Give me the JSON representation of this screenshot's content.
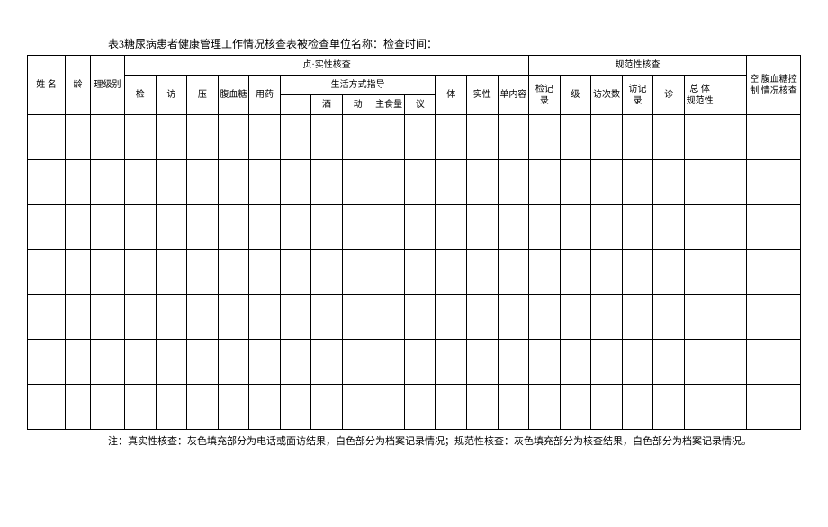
{
  "title": "表3糖尿病患者健康管理工作情况核查表被检查单位名称：检查时间：",
  "headers": {
    "section_authenticity": "贞·实性核查",
    "section_normative": "规范性核查",
    "lifestyle_guidance": "生活方式指导",
    "name": "姓\n名",
    "age": "龄",
    "category": "理级别",
    "check": "检",
    "visit": "访",
    "pressure": "压",
    "blood_sugar": "腹血糖",
    "medication": "用药",
    "alcohol": "酒",
    "exercise": "动",
    "staple_food": "主食量",
    "advice": "议",
    "body": "体",
    "authenticity": "实性",
    "unit_content": "单内容",
    "check_record": "检记\n录",
    "level": "级",
    "visit_count": "访次数",
    "visit_record": "访记\n录",
    "diagnosis": "诊",
    "total_body": "总\n体\n规范性",
    "fasting_control": "空\n腹血糖控制\n情况核查"
  },
  "footnote": "注：真实性核查：灰色填充部分为电话或面访结果，白色部分为档案记录情况；规范性核查：灰色填充部分为核查结果，白色部分为档案记录情况。",
  "data_rows": 7,
  "styling": {
    "border_color": "#000000",
    "background_color": "#ffffff",
    "text_color": "#000000",
    "font_family": "SimSun",
    "title_fontsize": 12,
    "cell_fontsize": 10,
    "footnote_fontsize": 11,
    "data_row_height": 50,
    "header_row_height": 22
  }
}
